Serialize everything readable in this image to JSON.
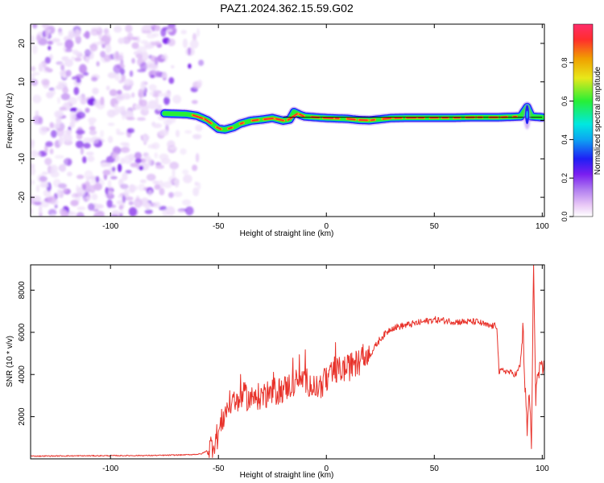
{
  "title": "PAZ1.2024.362.15.59.G02",
  "colors": {
    "snr_line": "#e8322a",
    "spectrogram_noise": "#8a2be2",
    "spectrogram_colormap": [
      "#ffffff",
      "#e9c8f6",
      "#b07df0",
      "#7a1ef0",
      "#1f1ff5",
      "#0da4f2",
      "#00e8e0",
      "#27ef36",
      "#e8e81a",
      "#f0a000",
      "#ff2d2d",
      "#ff2d6b"
    ]
  },
  "chart_data": [
    {
      "type": "heatmap",
      "title": "PAZ1.2024.362.15.59.G02",
      "xlabel": "Height of straight line (km)",
      "ylabel": "Frequency (Hz)",
      "xlim": [
        -137,
        101
      ],
      "ylim": [
        -25,
        25
      ],
      "x_ticks": [
        -100,
        -50,
        0,
        50,
        100
      ],
      "y_ticks": [
        -20,
        -10,
        0,
        10,
        20
      ],
      "grid": false,
      "colorbar": {
        "label": "Normalized spectral amplitude",
        "range": [
          0,
          1
        ],
        "ticks": [
          "0.0",
          "0.2",
          "0.4",
          "0.6",
          "0.8"
        ]
      },
      "signal_frequency_track": {
        "x": [
          -75,
          -65,
          -60,
          -55,
          -50,
          -47,
          -43,
          -40,
          -35,
          -30,
          -25,
          -20,
          -17,
          -15,
          -12,
          -10,
          -5,
          0,
          5,
          10,
          15,
          20,
          25,
          30,
          40,
          50,
          60,
          70,
          80,
          90,
          93,
          95,
          100
        ],
        "y": [
          1.8,
          1.6,
          1.2,
          0.0,
          -2.2,
          -2.4,
          -1.8,
          -0.9,
          -0.1,
          0.2,
          0.6,
          -0.1,
          0.2,
          2.2,
          1.4,
          1.0,
          0.8,
          0.6,
          0.5,
          0.4,
          0.1,
          0.0,
          0.3,
          0.6,
          0.7,
          0.7,
          0.7,
          0.8,
          0.8,
          1.0,
          3.5,
          1.0,
          0.8
        ]
      },
      "noise_region_x": [
        -137,
        -58
      ]
    },
    {
      "type": "line",
      "xlabel": "Height of straight line (km)",
      "ylabel": "SNR (10 * v/v)",
      "xlim": [
        -137,
        101
      ],
      "ylim": [
        0,
        9200
      ],
      "x_ticks": [
        -100,
        -50,
        0,
        50,
        100
      ],
      "y_ticks": [
        2000,
        4000,
        6000,
        8000
      ],
      "grid": false,
      "series": [
        {
          "x": [
            -137,
            -120,
            -100,
            -80,
            -65,
            -58,
            -55,
            -52,
            -50,
            -48,
            -46,
            -44,
            -42,
            -40,
            -38,
            -35,
            -30,
            -25,
            -20,
            -15,
            -10,
            -5,
            0,
            5,
            10,
            15,
            20,
            25,
            30,
            40,
            50,
            60,
            70,
            75,
            79,
            80,
            82,
            85,
            88,
            90,
            91,
            92,
            93,
            94,
            95,
            96,
            97,
            98,
            100,
            101
          ],
          "y": [
            130,
            140,
            150,
            160,
            190,
            230,
            400,
            800,
            1200,
            1900,
            2400,
            2700,
            2500,
            2900,
            3000,
            2800,
            3000,
            3100,
            3300,
            3600,
            3800,
            3300,
            3700,
            4200,
            4300,
            4600,
            4900,
            5700,
            6200,
            6400,
            6600,
            6500,
            6500,
            6300,
            6300,
            4100,
            4200,
            4100,
            4000,
            4500,
            6300,
            3500,
            1200,
            3300,
            500,
            9200,
            3000,
            4000,
            4200,
            4300
          ]
        }
      ]
    }
  ]
}
